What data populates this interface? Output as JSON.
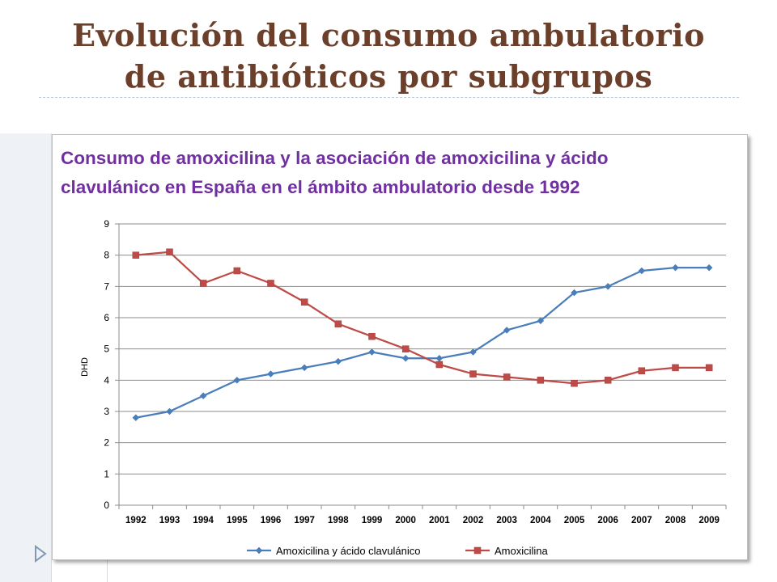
{
  "slide": {
    "title_line1": "Evolución del consumo  ambulatorio",
    "title_line2": "de antibióticos por subgrupos"
  },
  "colors": {
    "title": "#6b3f2a",
    "chart_title": "#7030a0",
    "series_blue": "#4a7ebb",
    "series_red": "#be4b48"
  },
  "chart_data": {
    "type": "line",
    "title_line1": "Consumo de amoxicilina y la asociación de amoxicilina y ácido",
    "title_line2": "clavulánico en España en el ámbito ambulatorio desde 1992",
    "ylabel": "DHD",
    "xlabel": "",
    "ylim": [
      0,
      9
    ],
    "yticks": [
      "0",
      "1",
      "2",
      "3",
      "4",
      "5",
      "6",
      "7",
      "8",
      "9"
    ],
    "grid": true,
    "legend_position": "bottom",
    "categories": [
      "1992",
      "1993",
      "1994",
      "1995",
      "1996",
      "1997",
      "1998",
      "1999",
      "2000",
      "2001",
      "2002",
      "2003",
      "2004",
      "2005",
      "2006",
      "2007",
      "2008",
      "2009"
    ],
    "series": [
      {
        "name": "Amoxicilina y ácido clavulánico",
        "color": "#4a7ebb",
        "marker": "diamond",
        "values": [
          2.8,
          3.0,
          3.5,
          4.0,
          4.2,
          4.4,
          4.6,
          4.9,
          4.7,
          4.7,
          4.9,
          5.6,
          5.9,
          6.8,
          7.0,
          7.5,
          7.6,
          7.6
        ]
      },
      {
        "name": "Amoxicilina",
        "color": "#be4b48",
        "marker": "square",
        "values": [
          8.0,
          8.1,
          7.1,
          7.5,
          7.1,
          6.5,
          5.8,
          5.4,
          5.0,
          4.5,
          4.2,
          4.1,
          4.0,
          3.9,
          4.0,
          4.3,
          4.4,
          4.4
        ]
      }
    ]
  }
}
